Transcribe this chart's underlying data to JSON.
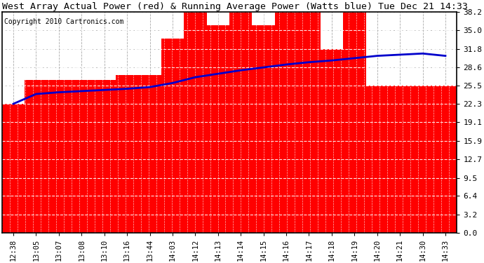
{
  "title": "West Array Actual Power (red) & Running Average Power (Watts blue) Tue Dec 21 14:33",
  "copyright": "Copyright 2010 Cartronics.com",
  "x_labels": [
    "12:38",
    "13:05",
    "13:07",
    "13:08",
    "13:10",
    "13:16",
    "13:44",
    "14:03",
    "14:12",
    "14:13",
    "14:14",
    "14:15",
    "14:16",
    "14:17",
    "14:18",
    "14:19",
    "14:20",
    "14:21",
    "14:30",
    "14:33"
  ],
  "bar_heights": [
    22.3,
    26.4,
    26.4,
    26.4,
    26.4,
    27.3,
    27.3,
    33.6,
    38.2,
    35.9,
    38.2,
    35.9,
    38.2,
    38.2,
    31.8,
    38.2,
    25.5,
    25.5,
    25.5,
    25.5
  ],
  "running_avg": [
    22.3,
    24.0,
    24.3,
    24.5,
    24.7,
    24.9,
    25.2,
    25.9,
    26.9,
    27.5,
    28.1,
    28.6,
    29.1,
    29.5,
    29.8,
    30.2,
    30.6,
    30.8,
    31.0,
    30.6
  ],
  "bar_color": "#ff0000",
  "line_color": "#0000cc",
  "background_color": "#ffffff",
  "grid_color_major": "#aaaaaa",
  "grid_color_minor": "#cccccc",
  "yticks": [
    0.0,
    3.2,
    6.4,
    9.5,
    12.7,
    15.9,
    19.1,
    22.3,
    25.5,
    28.6,
    31.8,
    35.0,
    38.2
  ],
  "ylim": [
    0.0,
    38.2
  ],
  "title_fontsize": 9.5,
  "copyright_fontsize": 7,
  "tick_fontsize": 7.5,
  "ytick_fontsize": 8
}
